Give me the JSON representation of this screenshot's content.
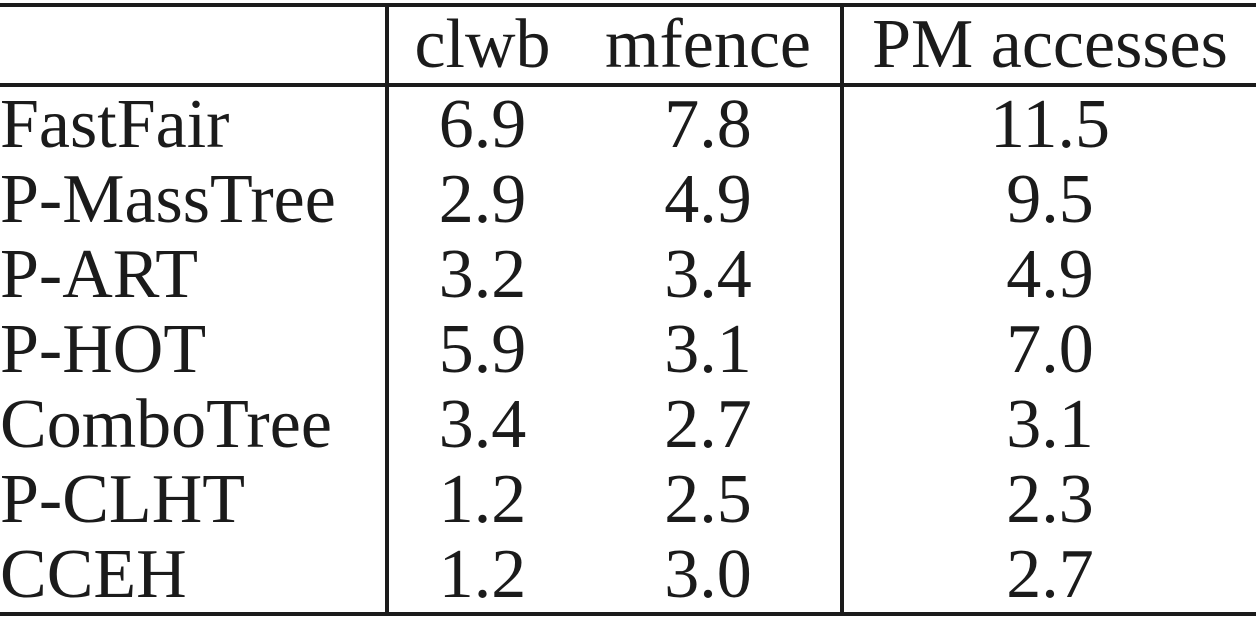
{
  "page": {
    "background_color": "#ffffff",
    "text_color": "#1b1b1b",
    "rule_color": "#1b1b1b"
  },
  "table": {
    "columns": [
      "",
      "clwb",
      "mfence",
      "PM accesses"
    ],
    "rows": [
      {
        "label": "FastFair",
        "clwb": "6.9",
        "mfence": "7.8",
        "pm_accesses": "11.5"
      },
      {
        "label": "P-MassTree",
        "clwb": "2.9",
        "mfence": "4.9",
        "pm_accesses": "9.5"
      },
      {
        "label": "P-ART",
        "clwb": "3.2",
        "mfence": "3.4",
        "pm_accesses": "4.9"
      },
      {
        "label": "P-HOT",
        "clwb": "5.9",
        "mfence": "3.1",
        "pm_accesses": "7.0"
      },
      {
        "label": "ComboTree",
        "clwb": "3.4",
        "mfence": "2.7",
        "pm_accesses": "3.1"
      },
      {
        "label": "P-CLHT",
        "clwb": "1.2",
        "mfence": "2.5",
        "pm_accesses": "2.3"
      },
      {
        "label": "CCEH",
        "clwb": "1.2",
        "mfence": "3.0",
        "pm_accesses": "2.7"
      }
    ]
  },
  "chart_data": {
    "type": "table",
    "title": "",
    "columns": [
      "",
      "clwb",
      "mfence",
      "PM accesses"
    ],
    "rows": [
      [
        "FastFair",
        6.9,
        7.8,
        11.5
      ],
      [
        "P-MassTree",
        2.9,
        4.9,
        9.5
      ],
      [
        "P-ART",
        3.2,
        3.4,
        4.9
      ],
      [
        "P-HOT",
        5.9,
        3.1,
        7.0
      ],
      [
        "ComboTree",
        3.4,
        2.7,
        3.1
      ],
      [
        "P-CLHT",
        1.2,
        2.5,
        2.3
      ],
      [
        "CCEH",
        1.2,
        3.0,
        2.7
      ]
    ]
  }
}
